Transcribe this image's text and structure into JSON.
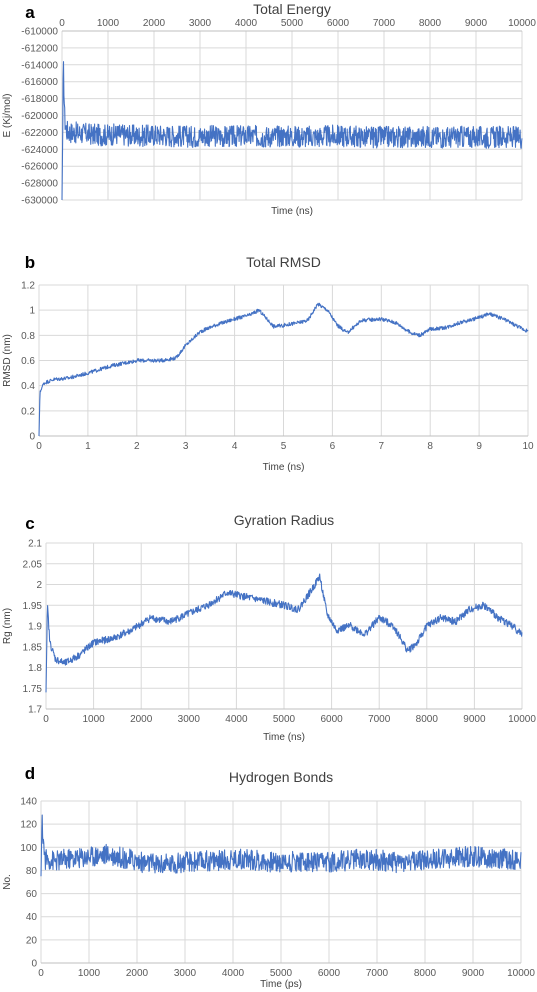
{
  "chart_data": [
    {
      "panel": "a",
      "type": "line",
      "title": "Total Energy",
      "xlabel": "Time (ns)",
      "ylabel": "E (Kj/mol)",
      "xlim": [
        0,
        10000
      ],
      "ylim": [
        -630000,
        -610000
      ],
      "xticks": [
        0,
        1000,
        2000,
        3000,
        4000,
        5000,
        6000,
        7000,
        8000,
        9000,
        10000
      ],
      "yticks": [
        -610000,
        -612000,
        -614000,
        -616000,
        -618000,
        -620000,
        -622000,
        -624000,
        -626000,
        -628000,
        -630000
      ],
      "x_axis_position": "top",
      "grid": true,
      "color": "#4472c4",
      "series": [
        {
          "x": [
            0,
            30,
            60,
            100,
            200,
            400,
            600,
            800,
            1000,
            1200,
            1400,
            1600,
            1800,
            2000,
            2400,
            2800,
            3200,
            3600,
            4000,
            4400,
            4800,
            5200,
            5600,
            6000,
            6400,
            6800,
            7200,
            7600,
            8000,
            8400,
            8800,
            9200,
            9600,
            10000
          ],
          "y": [
            -630000,
            -614000,
            -620500,
            -621800,
            -622000,
            -622100,
            -622200,
            -622300,
            -622300,
            -622200,
            -622300,
            -622400,
            -622400,
            -622300,
            -622400,
            -622500,
            -622400,
            -622500,
            -622400,
            -622500,
            -622400,
            -622500,
            -622500,
            -622400,
            -622500,
            -622600,
            -622500,
            -622600,
            -622500,
            -622600,
            -622500,
            -622600,
            -622500,
            -622600
          ]
        }
      ]
    },
    {
      "panel": "b",
      "type": "line",
      "title": "Total RMSD",
      "xlabel": "Time (ns)",
      "ylabel": "RMSD (nm)",
      "xlim": [
        0,
        10
      ],
      "ylim": [
        0,
        1.2
      ],
      "xticks": [
        0,
        1,
        2,
        3,
        4,
        5,
        6,
        7,
        8,
        9,
        10
      ],
      "yticks": [
        0,
        0.2,
        0.4,
        0.6,
        0.8,
        1,
        1.2
      ],
      "grid": true,
      "color": "#4472c4",
      "series": [
        {
          "x": [
            0,
            0.02,
            0.05,
            0.1,
            0.3,
            0.6,
            1,
            1.5,
            2,
            2.5,
            2.8,
            3,
            3.3,
            3.6,
            4,
            4.3,
            4.5,
            4.8,
            5,
            5.3,
            5.5,
            5.7,
            5.9,
            6.1,
            6.3,
            6.6,
            7,
            7.3,
            7.6,
            7.8,
            8,
            8.3,
            8.6,
            8.9,
            9.2,
            9.5,
            9.8,
            10
          ],
          "y": [
            0,
            0.34,
            0.38,
            0.42,
            0.45,
            0.46,
            0.5,
            0.56,
            0.6,
            0.6,
            0.62,
            0.72,
            0.83,
            0.88,
            0.93,
            0.96,
            1.0,
            0.87,
            0.88,
            0.9,
            0.92,
            1.05,
            1.0,
            0.88,
            0.82,
            0.92,
            0.93,
            0.9,
            0.82,
            0.8,
            0.85,
            0.86,
            0.9,
            0.93,
            0.97,
            0.93,
            0.87,
            0.83
          ]
        }
      ]
    },
    {
      "panel": "c",
      "type": "line",
      "title": "Gyration Radius",
      "xlabel": "Time (ns)",
      "ylabel": "Rg (nm)",
      "xlim": [
        0,
        10000
      ],
      "ylim": [
        1.7,
        2.1
      ],
      "xticks": [
        0,
        1000,
        2000,
        3000,
        4000,
        5000,
        6000,
        7000,
        8000,
        9000,
        10000
      ],
      "yticks": [
        1.7,
        1.75,
        1.8,
        1.85,
        1.9,
        1.95,
        2,
        2.05,
        2.1
      ],
      "grid": true,
      "color": "#4472c4",
      "series": [
        {
          "x": [
            0,
            30,
            80,
            200,
            400,
            700,
            1000,
            1400,
            1800,
            2200,
            2600,
            3000,
            3400,
            3800,
            4200,
            4600,
            5000,
            5300,
            5600,
            5750,
            5900,
            6100,
            6400,
            6700,
            7000,
            7300,
            7600,
            7800,
            8000,
            8300,
            8600,
            8900,
            9200,
            9500,
            9800,
            10000
          ],
          "y": [
            1.74,
            1.95,
            1.86,
            1.82,
            1.81,
            1.83,
            1.86,
            1.87,
            1.89,
            1.92,
            1.91,
            1.93,
            1.95,
            1.98,
            1.97,
            1.96,
            1.95,
            1.94,
            1.99,
            2.02,
            1.93,
            1.89,
            1.9,
            1.88,
            1.92,
            1.9,
            1.84,
            1.86,
            1.9,
            1.92,
            1.91,
            1.94,
            1.95,
            1.92,
            1.9,
            1.88
          ]
        }
      ]
    },
    {
      "panel": "d",
      "type": "line",
      "title": "Hydrogen Bonds",
      "xlabel": "Time (ps)",
      "ylabel": "No.",
      "xlim": [
        0,
        10000
      ],
      "ylim": [
        0,
        140
      ],
      "xticks": [
        0,
        1000,
        2000,
        3000,
        4000,
        5000,
        6000,
        7000,
        8000,
        9000,
        10000
      ],
      "yticks": [
        0,
        20,
        40,
        60,
        80,
        100,
        120,
        140
      ],
      "grid": true,
      "color": "#4472c4",
      "series": [
        {
          "x": [
            0,
            20,
            80,
            300,
            600,
            1000,
            1400,
            1800,
            2200,
            2600,
            3000,
            3400,
            3800,
            4200,
            4600,
            5000,
            5400,
            5800,
            6200,
            6600,
            7000,
            7400,
            7800,
            8200,
            8600,
            9000,
            9400,
            9800,
            10000
          ],
          "y": [
            75,
            122,
            90,
            88,
            90,
            92,
            94,
            90,
            86,
            85,
            87,
            88,
            89,
            90,
            88,
            87,
            88,
            86,
            88,
            90,
            89,
            87,
            88,
            90,
            91,
            92,
            91,
            90,
            88
          ]
        }
      ]
    }
  ]
}
